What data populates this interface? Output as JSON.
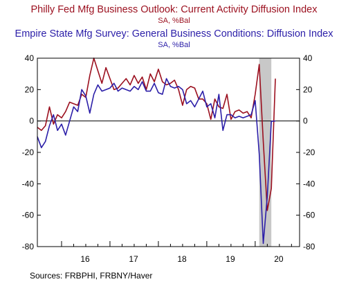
{
  "chart_data": {
    "type": "line",
    "title": "Philly Fed Mfg Business Outlook: Current Activity Diffusion Index",
    "title_sub": "SA, %Bal",
    "title2": "Empire State Mfg Survey: General Business Conditions: Diffusion Index",
    "title2_sub": "SA, %Bal",
    "source": "Sources:  FRBPHI, FRBNY/Haver",
    "x_ticks": [
      "16",
      "17",
      "18",
      "19",
      "20"
    ],
    "y_ticks": [
      "40",
      "20",
      "0",
      "-20",
      "-40",
      "-60",
      "-80"
    ],
    "ylim": [
      -80,
      40
    ],
    "xlim": [
      "2015-07",
      "2020-12"
    ],
    "grid": false,
    "zero_line": true,
    "recession_shading": {
      "start": "2020-02",
      "end": "2020-05",
      "color": "#c8c8c8"
    },
    "colors": {
      "philly": "#9b0f1e",
      "empire": "#2b1ea8",
      "shade": "#c8c8c8"
    },
    "series": [
      {
        "key": "philly",
        "x": [
          "2015-07",
          "2015-08",
          "2015-09",
          "2015-10",
          "2015-11",
          "2015-12",
          "2016-01",
          "2016-02",
          "2016-03",
          "2016-04",
          "2016-05",
          "2016-06",
          "2016-07",
          "2016-08",
          "2016-09",
          "2016-10",
          "2016-11",
          "2016-12",
          "2017-01",
          "2017-02",
          "2017-03",
          "2017-04",
          "2017-05",
          "2017-06",
          "2017-07",
          "2017-08",
          "2017-09",
          "2017-10",
          "2017-11",
          "2017-12",
          "2018-01",
          "2018-02",
          "2018-03",
          "2018-04",
          "2018-05",
          "2018-06",
          "2018-07",
          "2018-08",
          "2018-09",
          "2018-10",
          "2018-11",
          "2018-12",
          "2019-01",
          "2019-02",
          "2019-03",
          "2019-04",
          "2019-05",
          "2019-06",
          "2019-07",
          "2019-08",
          "2019-09",
          "2019-10",
          "2019-11",
          "2019-12",
          "2020-01",
          "2020-02",
          "2020-03",
          "2020-04",
          "2020-05",
          "2020-06"
        ],
        "values": [
          -4,
          -6,
          -3,
          9,
          -2,
          4,
          2,
          6,
          12,
          11,
          10,
          17,
          15,
          29,
          40,
          32,
          24,
          34,
          27,
          20,
          21,
          24,
          27,
          23,
          29,
          24,
          28,
          20,
          30,
          25,
          33,
          25,
          23,
          24,
          26,
          20,
          10,
          20,
          22,
          21,
          14,
          14,
          11,
          1,
          14,
          9,
          8,
          17,
          1,
          6,
          7,
          5,
          6,
          2,
          17,
          36,
          -13,
          -57,
          -43,
          27
        ]
      },
      {
        "key": "empire",
        "x": [
          "2015-07",
          "2015-08",
          "2015-09",
          "2015-10",
          "2015-11",
          "2015-12",
          "2016-01",
          "2016-02",
          "2016-03",
          "2016-04",
          "2016-05",
          "2016-06",
          "2016-07",
          "2016-08",
          "2016-09",
          "2016-10",
          "2016-11",
          "2016-12",
          "2017-01",
          "2017-02",
          "2017-03",
          "2017-04",
          "2017-05",
          "2017-06",
          "2017-07",
          "2017-08",
          "2017-09",
          "2017-10",
          "2017-11",
          "2017-12",
          "2018-01",
          "2018-02",
          "2018-03",
          "2018-04",
          "2018-05",
          "2018-06",
          "2018-07",
          "2018-08",
          "2018-09",
          "2018-10",
          "2018-11",
          "2018-12",
          "2019-01",
          "2019-02",
          "2019-03",
          "2019-04",
          "2019-05",
          "2019-06",
          "2019-07",
          "2019-08",
          "2019-09",
          "2019-10",
          "2019-11",
          "2019-12",
          "2020-01",
          "2020-02",
          "2020-03",
          "2020-04",
          "2020-05",
          "2020-06"
        ],
        "values": [
          -10,
          -17,
          -13,
          -3,
          4,
          -6,
          -2,
          -9,
          0,
          9,
          6,
          20,
          16,
          5,
          17,
          23,
          19,
          20,
          21,
          24,
          19,
          21,
          20,
          19,
          22,
          20,
          25,
          19,
          19,
          24,
          18,
          17,
          27,
          22,
          21,
          22,
          20,
          11,
          13,
          9,
          14,
          19,
          9,
          11,
          2,
          17,
          -6,
          4,
          4,
          2,
          3,
          2,
          3,
          4,
          13,
          -21,
          -78,
          -48,
          -0.2,
          0
        ]
      }
    ]
  }
}
